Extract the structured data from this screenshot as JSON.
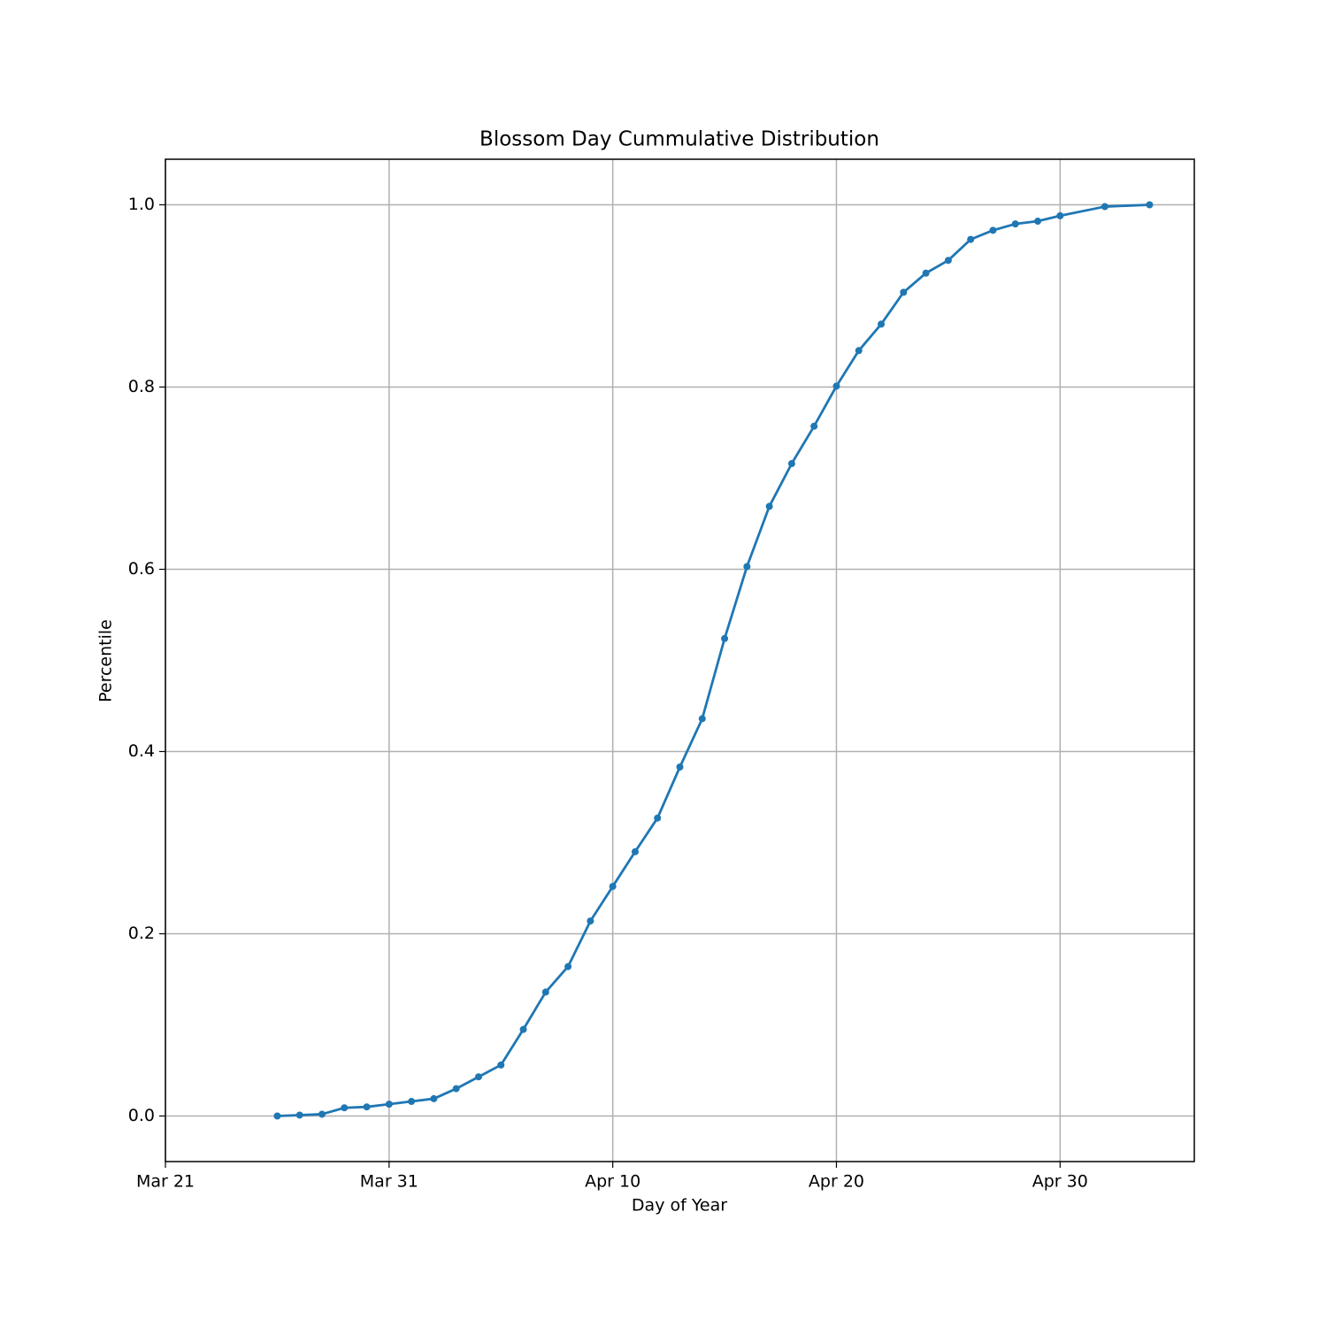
{
  "chart_data": {
    "type": "line",
    "title": "Blossom Day Cummulative Distribution",
    "x_label": "Day of Year",
    "y_label": "Percentile",
    "x": [
      "Mar 26",
      "Mar 27",
      "Mar 28",
      "Mar 29",
      "Mar 30",
      "Mar 31",
      "Apr 1",
      "Apr 2",
      "Apr 3",
      "Apr 4",
      "Apr 5",
      "Apr 6",
      "Apr 7",
      "Apr 8",
      "Apr 9",
      "Apr 10",
      "Apr 11",
      "Apr 12",
      "Apr 13",
      "Apr 14",
      "Apr 15",
      "Apr 16",
      "Apr 17",
      "Apr 18",
      "Apr 19",
      "Apr 20",
      "Apr 21",
      "Apr 22",
      "Apr 23",
      "Apr 24",
      "Apr 25",
      "Apr 26",
      "Apr 27",
      "Apr 28",
      "Apr 29",
      "Apr 30",
      "May 2",
      "May 4"
    ],
    "series": [
      {
        "name": "Percentile",
        "color": "#1f77b4",
        "values": [
          0.0,
          0.001,
          0.002,
          0.009,
          0.01,
          0.013,
          0.016,
          0.019,
          0.03,
          0.043,
          0.056,
          0.095,
          0.136,
          0.164,
          0.214,
          0.252,
          0.29,
          0.327,
          0.383,
          0.436,
          0.524,
          0.603,
          0.669,
          0.716,
          0.757,
          0.801,
          0.84,
          0.869,
          0.904,
          0.925,
          0.939,
          0.962,
          0.972,
          0.979,
          0.982,
          0.988,
          0.998,
          1.0
        ]
      }
    ],
    "xlim": [
      "Mar 21",
      "May 6"
    ],
    "xticks": [
      "Mar 21",
      "Mar 31",
      "Apr 10",
      "Apr 20",
      "Apr 30"
    ],
    "ylim": [
      -0.05,
      1.05
    ],
    "yticks": [
      {
        "value": 0,
        "label": "0.0"
      },
      0.2,
      0.4,
      0.6,
      0.8,
      {
        "value": 1,
        "label": "1.0"
      }
    ],
    "grid": true
  }
}
